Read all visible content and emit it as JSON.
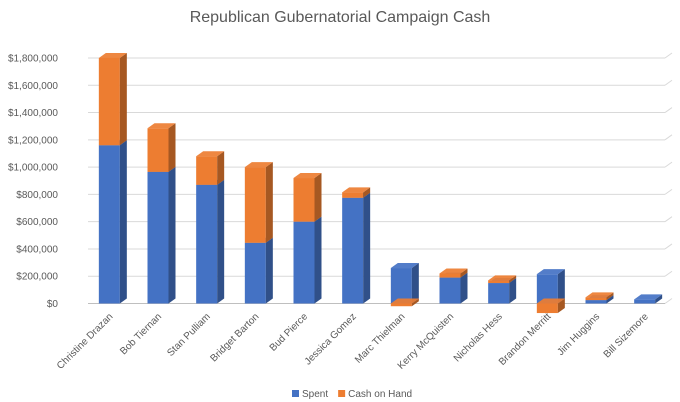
{
  "chart_data": {
    "type": "bar",
    "stacked": true,
    "style": "3d-column",
    "title": "Republican Gubernatorial Campaign Cash",
    "xlabel": "",
    "ylabel": "",
    "ylim": [
      0,
      1800000
    ],
    "yticks": [
      "$0",
      "$200,000",
      "$400,000",
      "$600,000",
      "$800,000",
      "$1,000,000",
      "$1,200,000",
      "$1,400,000",
      "$1,600,000",
      "$1,800,000"
    ],
    "grid": true,
    "legend_position": "bottom",
    "categories": [
      "Christine Drazan",
      "Bob Tiernan",
      "Stan Pulliam",
      "Bridget Barton",
      "Bud Pierce",
      "Jessica Gomez",
      "Marc Thielman",
      "Kerry McQuisten",
      "Nicholas Hess",
      "Brandon Merritt",
      "Jim Huggins",
      "Bill Sizemore"
    ],
    "series": [
      {
        "name": "Spent",
        "color": "#4472C4",
        "values": [
          1160000,
          965000,
          870000,
          445000,
          600000,
          775000,
          260000,
          190000,
          150000,
          215000,
          25000,
          30000
        ]
      },
      {
        "name": "Cash on Hand",
        "color": "#ED7D31",
        "values": [
          640000,
          320000,
          210000,
          555000,
          320000,
          40000,
          -20000,
          30000,
          20000,
          -70000,
          20000,
          0
        ]
      }
    ]
  }
}
